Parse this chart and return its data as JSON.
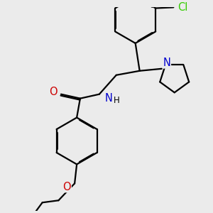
{
  "bg_color": "#ebebeb",
  "bond_color": "#000000",
  "bond_width": 1.6,
  "atom_colors": {
    "C": "#000000",
    "N": "#0000cc",
    "O": "#cc0000",
    "Cl": "#33cc00",
    "H": "#000000"
  },
  "font_size": 8.5,
  "aro_off": 0.018
}
